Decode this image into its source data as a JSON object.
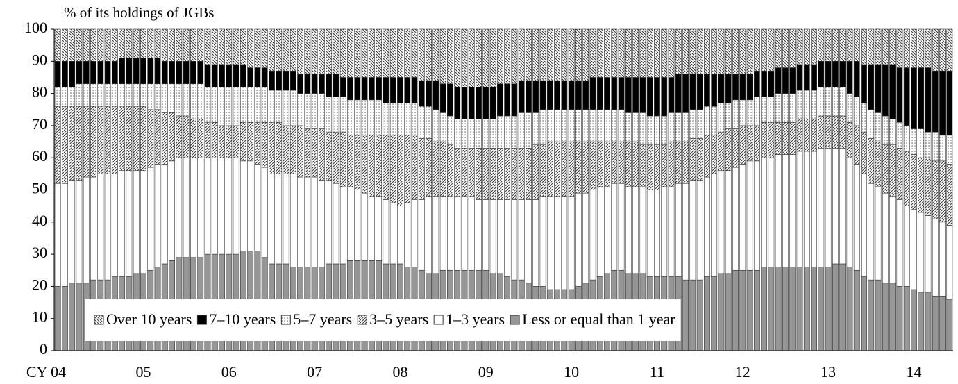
{
  "chart_data": {
    "type": "stacked-bar",
    "y_label": "% of its holdings of JGBs",
    "categories": [
      "CY 04",
      null,
      null,
      null,
      null,
      null,
      null,
      null,
      null,
      null,
      null,
      null,
      "05",
      null,
      null,
      null,
      null,
      null,
      null,
      null,
      null,
      null,
      null,
      null,
      "06",
      null,
      null,
      null,
      null,
      null,
      null,
      null,
      null,
      null,
      null,
      null,
      "07",
      null,
      null,
      null,
      null,
      null,
      null,
      null,
      null,
      null,
      null,
      null,
      "08",
      null,
      null,
      null,
      null,
      null,
      null,
      null,
      null,
      null,
      null,
      null,
      "09",
      null,
      null,
      null,
      null,
      null,
      null,
      null,
      null,
      null,
      null,
      null,
      "10",
      null,
      null,
      null,
      null,
      null,
      null,
      null,
      null,
      null,
      null,
      null,
      "11",
      null,
      null,
      null,
      null,
      null,
      null,
      null,
      null,
      null,
      null,
      null,
      "12",
      null,
      null,
      null,
      null,
      null,
      null,
      null,
      null,
      null,
      null,
      null,
      "13",
      null,
      null,
      null,
      null,
      null,
      null,
      null,
      null,
      null,
      null,
      null,
      "14",
      null,
      null,
      null,
      null,
      null
    ],
    "series": [
      {
        "name": "Less or equal than 1 year",
        "color": "#969696",
        "pattern": "solid",
        "values": [
          20,
          20,
          21,
          21,
          21,
          22,
          22,
          22,
          23,
          23,
          23,
          24,
          24,
          25,
          26,
          27,
          28,
          29,
          29,
          29,
          29,
          30,
          30,
          30,
          30,
          30,
          31,
          31,
          31,
          29,
          27,
          27,
          27,
          26,
          26,
          26,
          26,
          26,
          27,
          27,
          27,
          28,
          28,
          28,
          28,
          28,
          27,
          27,
          27,
          26,
          26,
          25,
          24,
          24,
          25,
          25,
          25,
          25,
          25,
          25,
          25,
          24,
          24,
          23,
          22,
          22,
          21,
          20,
          20,
          19,
          19,
          19,
          19,
          20,
          21,
          22,
          23,
          24,
          25,
          25,
          24,
          24,
          24,
          23,
          23,
          23,
          23,
          23,
          22,
          22,
          22,
          23,
          23,
          24,
          24,
          25,
          25,
          25,
          25,
          26,
          26,
          26,
          26,
          26,
          26,
          26,
          26,
          26,
          26,
          27,
          27,
          26,
          25,
          23,
          22,
          22,
          21,
          21,
          20,
          20,
          19,
          18,
          18,
          17,
          17,
          16
        ]
      },
      {
        "name": "1–3 years",
        "color": "#ffffff",
        "pattern": "solid",
        "values": [
          32,
          32,
          32,
          32,
          33,
          32,
          33,
          33,
          32,
          33,
          33,
          32,
          32,
          32,
          32,
          31,
          31,
          31,
          31,
          31,
          31,
          30,
          30,
          30,
          30,
          30,
          28,
          28,
          27,
          28,
          28,
          28,
          28,
          29,
          28,
          28,
          28,
          27,
          26,
          25,
          24,
          23,
          22,
          21,
          20,
          20,
          20,
          19,
          18,
          20,
          21,
          22,
          24,
          24,
          23,
          23,
          23,
          23,
          23,
          22,
          22,
          23,
          23,
          24,
          25,
          25,
          26,
          27,
          28,
          29,
          29,
          29,
          29,
          29,
          28,
          28,
          28,
          27,
          27,
          27,
          27,
          27,
          27,
          27,
          27,
          28,
          28,
          29,
          30,
          31,
          31,
          31,
          32,
          32,
          32,
          32,
          33,
          34,
          34,
          34,
          34,
          35,
          35,
          35,
          36,
          36,
          36,
          37,
          37,
          36,
          36,
          34,
          33,
          32,
          30,
          29,
          28,
          27,
          27,
          25,
          25,
          25,
          24,
          24,
          23,
          23
        ]
      },
      {
        "name": "3–5 years",
        "color": "#404040",
        "pattern": "slash",
        "values": [
          24,
          24,
          23,
          23,
          22,
          22,
          21,
          21,
          21,
          20,
          20,
          20,
          20,
          18,
          17,
          16,
          15,
          13,
          13,
          12,
          12,
          11,
          11,
          10,
          10,
          10,
          12,
          12,
          13,
          14,
          16,
          16,
          15,
          15,
          16,
          15,
          15,
          16,
          15,
          16,
          17,
          16,
          17,
          18,
          19,
          19,
          20,
          21,
          22,
          21,
          20,
          19,
          18,
          17,
          17,
          16,
          15,
          15,
          15,
          16,
          16,
          16,
          16,
          16,
          16,
          16,
          16,
          17,
          16,
          17,
          17,
          17,
          17,
          16,
          16,
          15,
          14,
          14,
          13,
          13,
          14,
          14,
          13,
          14,
          14,
          13,
          14,
          13,
          13,
          13,
          13,
          13,
          12,
          12,
          13,
          12,
          12,
          11,
          11,
          11,
          11,
          10,
          10,
          10,
          10,
          10,
          10,
          10,
          10,
          10,
          10,
          11,
          12,
          13,
          14,
          14,
          15,
          16,
          16,
          17,
          17,
          17,
          18,
          18,
          19,
          19
        ]
      },
      {
        "name": "5–7 years",
        "color": "#404040",
        "pattern": "dots",
        "values": [
          6,
          6,
          6,
          7,
          7,
          7,
          7,
          7,
          7,
          7,
          7,
          7,
          7,
          8,
          8,
          9,
          9,
          10,
          10,
          11,
          11,
          11,
          11,
          12,
          12,
          12,
          11,
          11,
          11,
          11,
          10,
          10,
          11,
          11,
          10,
          11,
          11,
          11,
          11,
          11,
          11,
          11,
          11,
          11,
          11,
          11,
          10,
          10,
          10,
          10,
          10,
          10,
          10,
          10,
          9,
          9,
          9,
          9,
          9,
          9,
          9,
          9,
          10,
          10,
          10,
          11,
          11,
          10,
          11,
          10,
          10,
          10,
          10,
          10,
          10,
          10,
          10,
          10,
          10,
          10,
          9,
          9,
          10,
          9,
          9,
          9,
          9,
          9,
          9,
          9,
          9,
          9,
          9,
          9,
          8,
          9,
          8,
          8,
          9,
          8,
          8,
          9,
          9,
          9,
          9,
          9,
          9,
          9,
          9,
          9,
          9,
          9,
          9,
          9,
          9,
          9,
          9,
          8,
          8,
          8,
          8,
          9,
          8,
          9,
          8,
          9
        ]
      },
      {
        "name": "7–10 years",
        "color": "#000000",
        "pattern": "solid",
        "values": [
          8,
          8,
          8,
          7,
          7,
          7,
          7,
          7,
          7,
          8,
          8,
          8,
          8,
          8,
          8,
          7,
          7,
          7,
          7,
          7,
          7,
          7,
          7,
          7,
          7,
          7,
          7,
          6,
          6,
          6,
          6,
          6,
          6,
          6,
          6,
          6,
          6,
          6,
          7,
          7,
          6,
          7,
          7,
          7,
          7,
          7,
          8,
          8,
          8,
          8,
          8,
          8,
          8,
          9,
          9,
          10,
          10,
          10,
          10,
          10,
          10,
          10,
          10,
          10,
          10,
          10,
          10,
          10,
          9,
          9,
          9,
          9,
          9,
          9,
          9,
          10,
          10,
          10,
          10,
          10,
          11,
          11,
          11,
          12,
          12,
          12,
          11,
          12,
          12,
          11,
          11,
          10,
          10,
          9,
          9,
          8,
          8,
          8,
          8,
          8,
          8,
          8,
          8,
          8,
          8,
          8,
          8,
          8,
          8,
          8,
          8,
          10,
          11,
          12,
          14,
          15,
          16,
          17,
          17,
          18,
          19,
          19,
          20,
          19,
          20,
          20
        ]
      },
      {
        "name": "Over 10 years",
        "color": "#404040",
        "pattern": "backslash",
        "values": [
          10,
          10,
          10,
          10,
          10,
          10,
          10,
          10,
          10,
          9,
          9,
          9,
          9,
          9,
          9,
          10,
          10,
          10,
          10,
          10,
          10,
          11,
          11,
          11,
          11,
          11,
          11,
          12,
          12,
          12,
          13,
          13,
          13,
          13,
          14,
          14,
          14,
          14,
          14,
          14,
          15,
          15,
          15,
          15,
          15,
          15,
          15,
          15,
          15,
          15,
          15,
          16,
          16,
          16,
          17,
          17,
          18,
          18,
          18,
          18,
          18,
          18,
          17,
          17,
          17,
          16,
          16,
          16,
          16,
          16,
          16,
          16,
          16,
          16,
          16,
          15,
          15,
          15,
          15,
          15,
          15,
          15,
          15,
          15,
          15,
          15,
          15,
          14,
          14,
          14,
          14,
          14,
          14,
          14,
          14,
          14,
          14,
          14,
          13,
          13,
          13,
          12,
          12,
          12,
          11,
          11,
          11,
          10,
          10,
          10,
          10,
          10,
          10,
          11,
          11,
          11,
          11,
          11,
          12,
          12,
          12,
          12,
          12,
          13,
          13,
          13
        ]
      }
    ],
    "ylim": [
      0,
      100
    ],
    "yticks": [
      0,
      10,
      20,
      30,
      40,
      50,
      60,
      70,
      80,
      90,
      100
    ],
    "grid": false
  }
}
